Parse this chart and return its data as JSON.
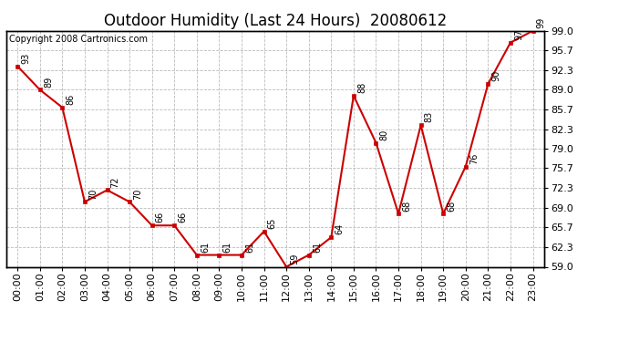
{
  "title": "Outdoor Humidity (Last 24 Hours)  20080612",
  "copyright": "Copyright 2008 Cartronics.com",
  "hours": [
    "00:00",
    "01:00",
    "02:00",
    "03:00",
    "04:00",
    "05:00",
    "06:00",
    "07:00",
    "08:00",
    "09:00",
    "10:00",
    "11:00",
    "12:00",
    "13:00",
    "14:00",
    "15:00",
    "16:00",
    "17:00",
    "18:00",
    "19:00",
    "20:00",
    "21:00",
    "22:00",
    "23:00"
  ],
  "values": [
    93,
    89,
    86,
    70,
    72,
    70,
    66,
    66,
    61,
    61,
    61,
    65,
    59,
    61,
    64,
    88,
    80,
    68,
    83,
    68,
    76,
    90,
    97,
    99
  ],
  "ylim": [
    59.0,
    99.0
  ],
  "ytick_vals": [
    59.0,
    62.3,
    65.7,
    69.0,
    72.3,
    75.7,
    79.0,
    82.3,
    85.7,
    89.0,
    92.3,
    95.7,
    99.0
  ],
  "ytick_labels": [
    "59.0",
    "62.3",
    "65.7",
    "69.0",
    "72.3",
    "75.7",
    "79.0",
    "82.3",
    "85.7",
    "89.0",
    "92.3",
    "95.7",
    "99.0"
  ],
  "line_color": "#cc0000",
  "marker": "s",
  "marker_size": 3,
  "bg_color": "#ffffff",
  "grid_color": "#bbbbbb",
  "title_fontsize": 12,
  "tick_fontsize": 8,
  "annot_fontsize": 7,
  "copyright_fontsize": 7
}
